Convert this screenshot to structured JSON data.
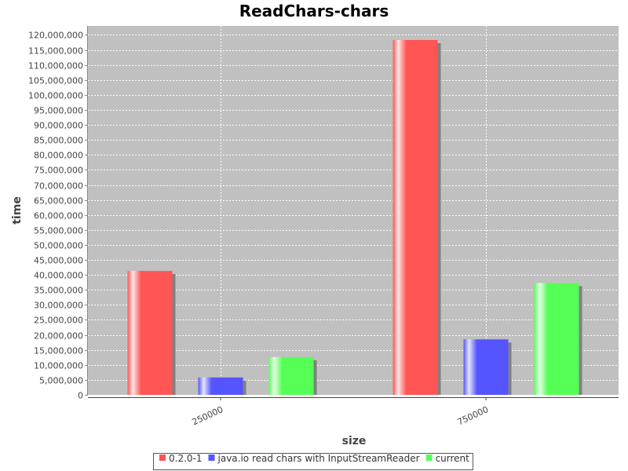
{
  "chart_data": {
    "type": "bar",
    "title": "ReadChars-chars",
    "xlabel": "size",
    "ylabel": "time",
    "categories": [
      "250000",
      "750000"
    ],
    "series": [
      {
        "name": "0.2.0-1",
        "color": "#ff5555",
        "values": [
          41300000,
          118300000
        ]
      },
      {
        "name": "java.io read chars with InputStreamReader",
        "color": "#5555ff",
        "values": [
          5800000,
          18500000
        ]
      },
      {
        "name": "current",
        "color": "#55ff55",
        "values": [
          12600000,
          37300000
        ]
      }
    ],
    "ylim": [
      0,
      123000000
    ],
    "yticks": [
      0,
      5000000,
      10000000,
      15000000,
      20000000,
      25000000,
      30000000,
      35000000,
      40000000,
      45000000,
      50000000,
      55000000,
      60000000,
      65000000,
      70000000,
      75000000,
      80000000,
      85000000,
      90000000,
      95000000,
      100000000,
      105000000,
      110000000,
      115000000,
      120000000
    ],
    "grid": true,
    "legend_position": "bottom",
    "plot_background": "#c0c0c0"
  }
}
